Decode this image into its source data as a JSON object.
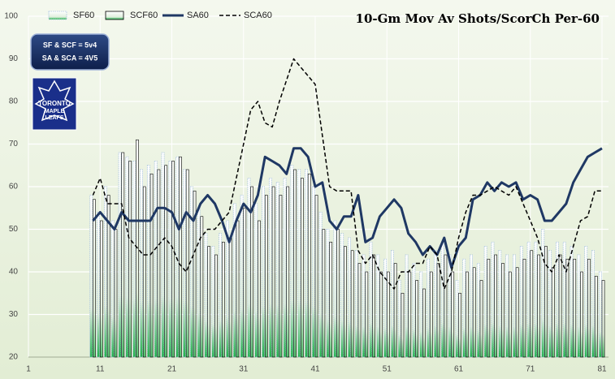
{
  "chart_data": {
    "type": "bar-line",
    "title": "10-Gm Mov Av Shots/ScorCh Per-60",
    "annotations": [
      "SF & SCF = 5v4",
      "SA & SCA = 4V5"
    ],
    "logo_text": [
      "TORONTO",
      "MAPLE",
      "LEAFS"
    ],
    "x": [
      10,
      11,
      12,
      13,
      14,
      15,
      16,
      17,
      18,
      19,
      20,
      21,
      22,
      23,
      24,
      25,
      26,
      27,
      28,
      29,
      30,
      31,
      32,
      33,
      34,
      35,
      36,
      37,
      38,
      39,
      40,
      41,
      42,
      43,
      44,
      45,
      46,
      47,
      48,
      49,
      50,
      51,
      52,
      53,
      54,
      55,
      56,
      57,
      58,
      59,
      60,
      61,
      62,
      63,
      64,
      65,
      66,
      67,
      68,
      69,
      70,
      71,
      72,
      73,
      74,
      75,
      76,
      77,
      78,
      79,
      80,
      81
    ],
    "xlim": [
      1,
      81
    ],
    "xticks": [
      1,
      11,
      21,
      31,
      41,
      51,
      61,
      71,
      81
    ],
    "ylim": [
      20,
      100
    ],
    "yticks": [
      20,
      30,
      40,
      50,
      60,
      70,
      80,
      90,
      100
    ],
    "grid": true,
    "series": [
      {
        "name": "SF60",
        "kind": "bar",
        "color": "#a9c4e0",
        "values": [
          58,
          54,
          60,
          52,
          68,
          67,
          66,
          64,
          65,
          66,
          68,
          66,
          67,
          64,
          60,
          55,
          49,
          46,
          49,
          52,
          56,
          58,
          62,
          56,
          60,
          62,
          61,
          62,
          65,
          64,
          64,
          60,
          54,
          50,
          52,
          49,
          48,
          45,
          44,
          47,
          44,
          43,
          45,
          38,
          44,
          42,
          40,
          43,
          45,
          47,
          44,
          38,
          43,
          44,
          42,
          46,
          47,
          45,
          44,
          44,
          46,
          47,
          47,
          50,
          45,
          47,
          47,
          46,
          44,
          46,
          45,
          40
        ]
      },
      {
        "name": "SCF60",
        "kind": "bar",
        "color": "#000000",
        "values": [
          57,
          52,
          58,
          50,
          68,
          66,
          71,
          60,
          63,
          64,
          65,
          66,
          67,
          64,
          59,
          53,
          46,
          44,
          47,
          48,
          52,
          55,
          60,
          52,
          58,
          60,
          58,
          60,
          64,
          62,
          63,
          58,
          50,
          47,
          50,
          46,
          45,
          42,
          40,
          44,
          40,
          40,
          42,
          35,
          40,
          38,
          36,
          40,
          42,
          44,
          40,
          35,
          40,
          41,
          38,
          43,
          44,
          42,
          40,
          41,
          43,
          45,
          44,
          46,
          41,
          44,
          43,
          43,
          40,
          43,
          39,
          38
        ]
      },
      {
        "name": "SA60",
        "kind": "line",
        "color": "#1f3864",
        "values": [
          52,
          54,
          52,
          50,
          54,
          52,
          52,
          52,
          52,
          55,
          55,
          54,
          50,
          54,
          52,
          56,
          58,
          56,
          52,
          47,
          52,
          56,
          54,
          58,
          67,
          66,
          65,
          63,
          69,
          69,
          67,
          60,
          61,
          52,
          50,
          53,
          53,
          58,
          47,
          48,
          53,
          55,
          57,
          55,
          49,
          47,
          44,
          46,
          44,
          48,
          41,
          46,
          48,
          57,
          58,
          61,
          59,
          61,
          60,
          61,
          57,
          58,
          57,
          52,
          52,
          54,
          56,
          61,
          64,
          67,
          68,
          69
        ]
      },
      {
        "name": "SCA60",
        "kind": "dashed-line",
        "color": "#000000",
        "values": [
          58,
          62,
          56,
          56,
          56,
          48,
          46,
          44,
          44,
          46,
          48,
          46,
          42,
          40,
          44,
          48,
          50,
          50,
          52,
          54,
          62,
          70,
          78,
          80,
          75,
          74,
          80,
          85,
          90,
          88,
          86,
          84,
          72,
          60,
          59,
          59,
          59,
          45,
          42,
          44,
          40,
          38,
          36,
          40,
          40,
          42,
          42,
          46,
          44,
          36,
          40,
          48,
          54,
          58,
          58,
          59,
          60,
          59,
          58,
          60,
          56,
          52,
          48,
          42,
          40,
          44,
          40,
          46,
          52,
          53,
          59,
          59
        ]
      }
    ]
  }
}
